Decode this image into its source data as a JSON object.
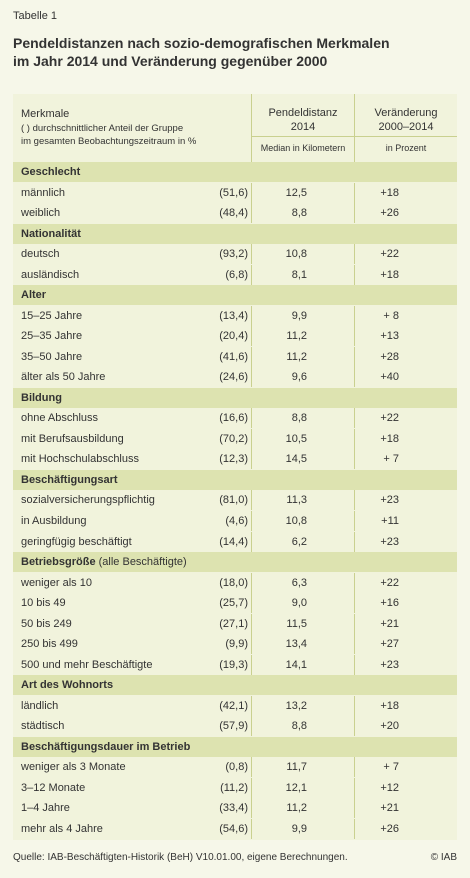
{
  "table_label": "Tabelle 1",
  "title_line1": "Pendeldistanzen nach sozio-demografischen Merkmalen",
  "title_line2": "im Jahr 2014 und Veränderung gegenüber 2000",
  "header": {
    "merkmale": "Merkmale",
    "merkmale_note1": "( ) durchschnittlicher Anteil der Gruppe",
    "merkmale_note2": "im gesamten Beobachtungszeitraum in %",
    "col1_line1": "Pendeldistanz",
    "col1_line2": "2014",
    "col1_sub": "Median in Kilometern",
    "col2_line1": "Veränderung",
    "col2_line2": "2000–2014",
    "col2_sub": "in Prozent"
  },
  "sections": [
    {
      "title": "Geschlecht",
      "rows": [
        {
          "label": "männlich",
          "share": "(51,6)",
          "km": "12,5",
          "pct": "+18"
        },
        {
          "label": "weiblich",
          "share": "(48,4)",
          "km": "8,8",
          "pct": "+26"
        }
      ]
    },
    {
      "title": "Nationalität",
      "rows": [
        {
          "label": "deutsch",
          "share": "(93,2)",
          "km": "10,8",
          "pct": "+22"
        },
        {
          "label": "ausländisch",
          "share": "(6,8)",
          "km": "8,1",
          "pct": "+18"
        }
      ]
    },
    {
      "title": "Alter",
      "rows": [
        {
          "label": "15–25 Jahre",
          "share": "(13,4)",
          "km": "9,9",
          "pct": "+ 8"
        },
        {
          "label": "25–35 Jahre",
          "share": "(20,4)",
          "km": "11,2",
          "pct": "+13"
        },
        {
          "label": "35–50 Jahre",
          "share": "(41,6)",
          "km": "11,2",
          "pct": "+28"
        },
        {
          "label": "älter als 50 Jahre",
          "share": "(24,6)",
          "km": "9,6",
          "pct": "+40"
        }
      ]
    },
    {
      "title": "Bildung",
      "rows": [
        {
          "label": "ohne Abschluss",
          "share": "(16,6)",
          "km": "8,8",
          "pct": "+22"
        },
        {
          "label": "mit Berufsausbildung",
          "share": "(70,2)",
          "km": "10,5",
          "pct": "+18"
        },
        {
          "label": "mit Hochschulabschluss",
          "share": "(12,3)",
          "km": "14,5",
          "pct": "+ 7"
        }
      ]
    },
    {
      "title": "Beschäftigungsart",
      "rows": [
        {
          "label": "sozialversicherungspflichtig",
          "share": "(81,0)",
          "km": "11,3",
          "pct": "+23"
        },
        {
          "label": "in Ausbildung",
          "share": "(4,6)",
          "km": "10,8",
          "pct": "+11"
        },
        {
          "label": "geringfügig beschäftigt",
          "share": "(14,4)",
          "km": "6,2",
          "pct": "+23"
        }
      ]
    },
    {
      "title": "Betriebsgröße",
      "title_suffix": " (alle Beschäftigte)",
      "rows": [
        {
          "label": "weniger als 10",
          "share": "(18,0)",
          "km": "6,3",
          "pct": "+22"
        },
        {
          "label": "10 bis 49",
          "share": "(25,7)",
          "km": "9,0",
          "pct": "+16"
        },
        {
          "label": "50 bis 249",
          "share": "(27,1)",
          "km": "11,5",
          "pct": "+21"
        },
        {
          "label": "250 bis 499",
          "share": "(9,9)",
          "km": "13,4",
          "pct": "+27"
        },
        {
          "label": "500 und mehr Beschäftigte",
          "share": "(19,3)",
          "km": "14,1",
          "pct": "+23"
        }
      ]
    },
    {
      "title": "Art des Wohnorts",
      "rows": [
        {
          "label": "ländlich",
          "share": "(42,1)",
          "km": "13,2",
          "pct": "+18"
        },
        {
          "label": "städtisch",
          "share": "(57,9)",
          "km": "8,8",
          "pct": "+20"
        }
      ]
    },
    {
      "title": "Beschäftigungsdauer im Betrieb",
      "rows": [
        {
          "label": "weniger als 3 Monate",
          "share": "(0,8)",
          "km": "11,7",
          "pct": "+ 7"
        },
        {
          "label": "3–12 Monate",
          "share": "(11,2)",
          "km": "12,1",
          "pct": "+12"
        },
        {
          "label": "1–4 Jahre",
          "share": "(33,4)",
          "km": "11,2",
          "pct": "+21"
        },
        {
          "label": "mehr als 4 Jahre",
          "share": "(54,6)",
          "km": "9,9",
          "pct": "+26"
        }
      ]
    }
  ],
  "footer": {
    "source": "Quelle: IAB-Beschäftigten-Historik (BeH) V10.01.00, eigene Berechnungen.",
    "copyright": "© IAB"
  }
}
